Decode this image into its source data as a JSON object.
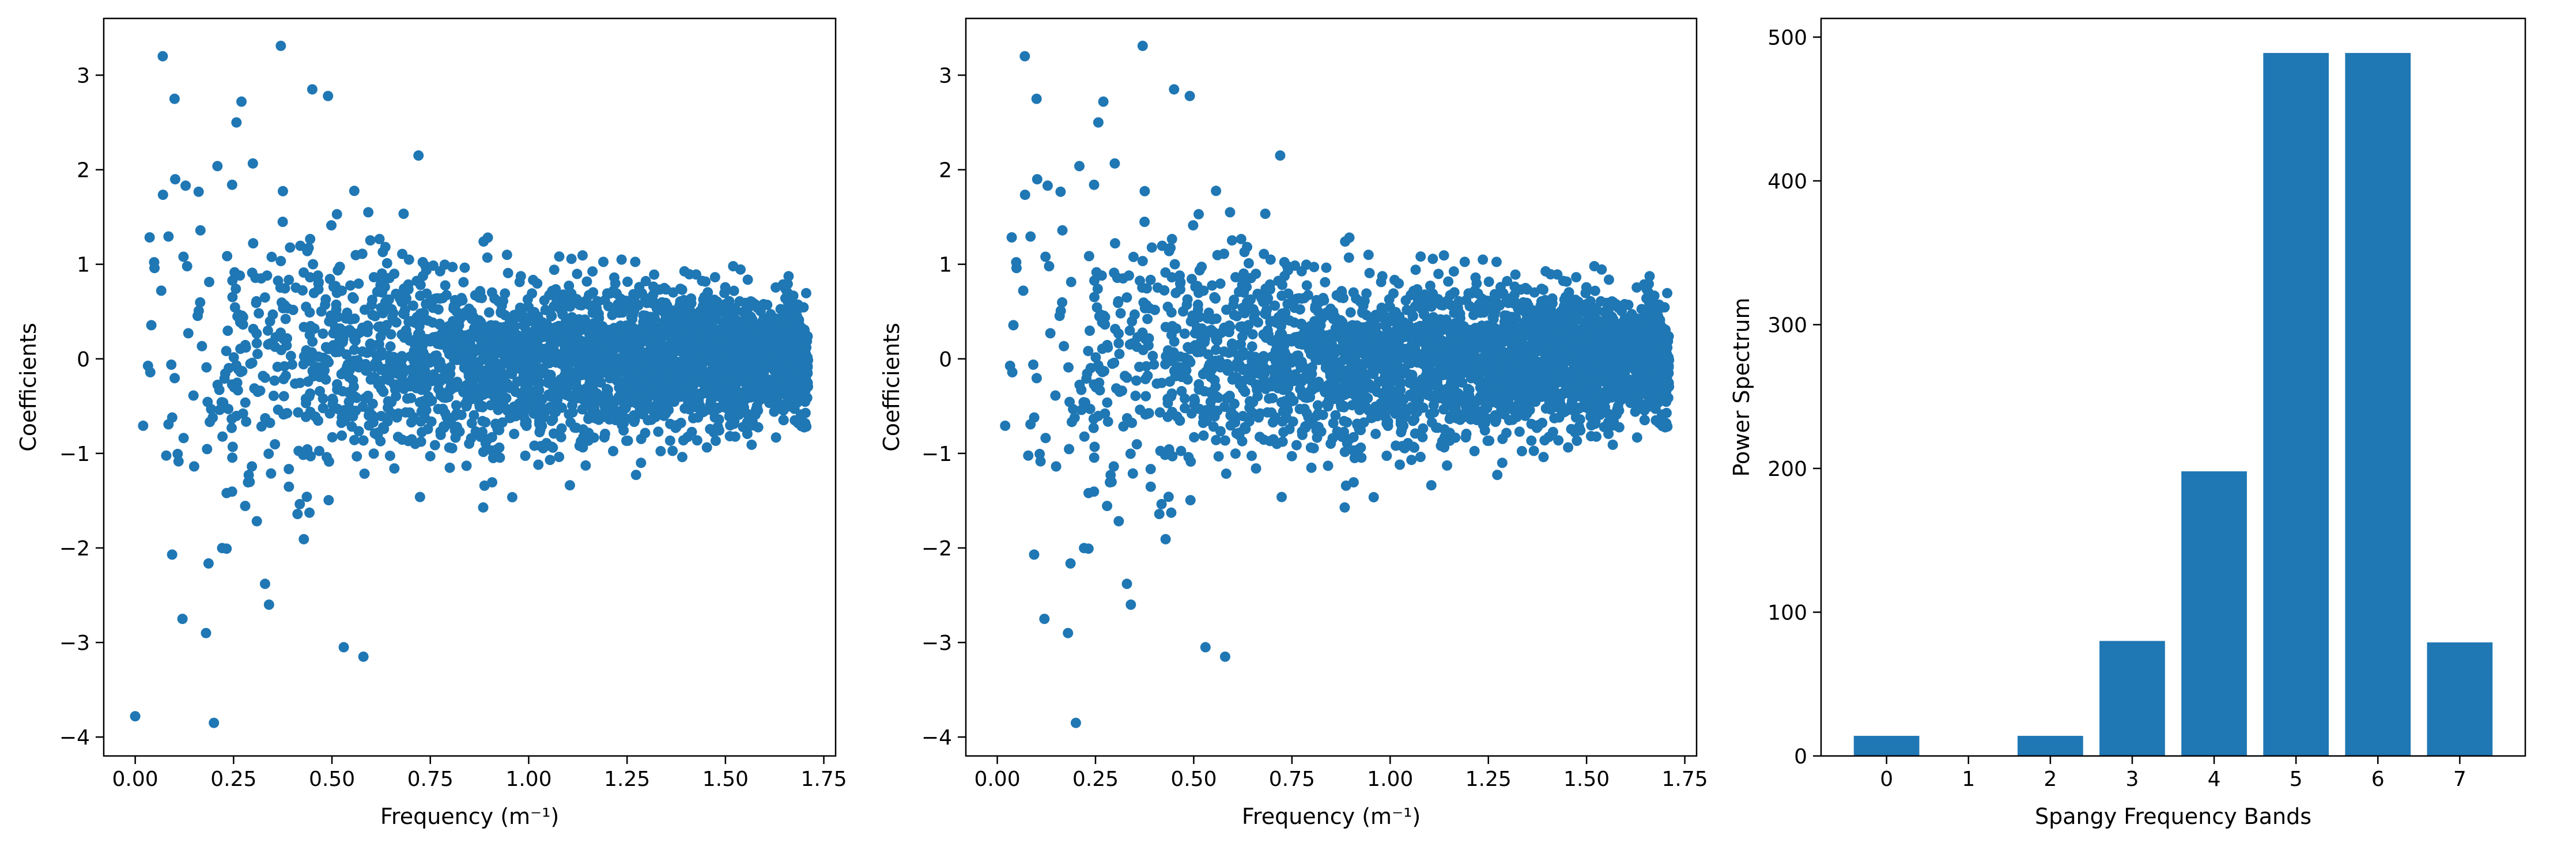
{
  "chart_data": [
    {
      "type": "scatter",
      "xlabel": "Frequency (m⁻¹)",
      "ylabel": "Coefficients",
      "xlim": [
        -0.08,
        1.78
      ],
      "ylim": [
        -4.2,
        3.6
      ],
      "xticks": [
        0.0,
        0.25,
        0.5,
        0.75,
        1.0,
        1.25,
        1.5,
        1.75
      ],
      "xtick_labels": [
        "0.00",
        "0.25",
        "0.50",
        "0.75",
        "1.00",
        "1.25",
        "1.50",
        "1.75"
      ],
      "yticks": [
        -4,
        -3,
        -2,
        -1,
        0,
        1,
        2,
        3
      ],
      "ytick_labels": [
        "−4",
        "−3",
        "−2",
        "−1",
        "0",
        "1",
        "2",
        "3"
      ],
      "color": "#1f77b4",
      "x_range": [
        0.0,
        1.71
      ],
      "n_points": 3000,
      "distribution": "coefficient spread narrows with increasing frequency",
      "notable_points": [
        {
          "x": 0.0,
          "y": -3.78
        },
        {
          "x": 0.07,
          "y": 3.2
        },
        {
          "x": 0.37,
          "y": 3.31
        },
        {
          "x": 0.2,
          "y": -3.85
        },
        {
          "x": 0.18,
          "y": -2.9
        },
        {
          "x": 0.58,
          "y": -3.15
        },
        {
          "x": 0.53,
          "y": -3.05
        },
        {
          "x": 0.45,
          "y": 2.85
        },
        {
          "x": 0.49,
          "y": 2.78
        },
        {
          "x": 0.1,
          "y": 2.75
        },
        {
          "x": 0.12,
          "y": -2.75
        },
        {
          "x": 0.34,
          "y": -2.6
        },
        {
          "x": 0.33,
          "y": -2.38
        },
        {
          "x": 0.27,
          "y": 2.72
        },
        {
          "x": 0.72,
          "y": 2.15
        }
      ]
    },
    {
      "type": "scatter",
      "xlabel": "Frequency (m⁻¹)",
      "ylabel": "Coefficients",
      "xlim": [
        -0.08,
        1.78
      ],
      "ylim": [
        -4.2,
        3.6
      ],
      "xticks": [
        0.0,
        0.25,
        0.5,
        0.75,
        1.0,
        1.25,
        1.5,
        1.75
      ],
      "xtick_labels": [
        "0.00",
        "0.25",
        "0.50",
        "0.75",
        "1.00",
        "1.25",
        "1.50",
        "1.75"
      ],
      "yticks": [
        -4,
        -3,
        -2,
        -1,
        0,
        1,
        2,
        3
      ],
      "ytick_labels": [
        "−4",
        "−3",
        "−2",
        "−1",
        "0",
        "1",
        "2",
        "3"
      ],
      "color": "#1f77b4",
      "x_range": [
        0.0,
        1.71
      ],
      "n_points": 3000,
      "distribution": "same coefficients as left panel without the point at frequency 0",
      "notable_points": [
        {
          "x": 0.07,
          "y": 3.2
        },
        {
          "x": 0.37,
          "y": 3.31
        },
        {
          "x": 0.2,
          "y": -3.85
        },
        {
          "x": 0.18,
          "y": -2.9
        },
        {
          "x": 0.58,
          "y": -3.15
        },
        {
          "x": 0.53,
          "y": -3.05
        },
        {
          "x": 0.45,
          "y": 2.85
        },
        {
          "x": 0.49,
          "y": 2.78
        },
        {
          "x": 0.1,
          "y": 2.75
        },
        {
          "x": 0.12,
          "y": -2.75
        },
        {
          "x": 0.34,
          "y": -2.6
        },
        {
          "x": 0.33,
          "y": -2.38
        },
        {
          "x": 0.27,
          "y": 2.72
        },
        {
          "x": 0.72,
          "y": 2.15
        }
      ]
    },
    {
      "type": "bar",
      "xlabel": "Spangy Frequency Bands",
      "ylabel": "Power Spectrum",
      "categories": [
        "0",
        "1",
        "2",
        "3",
        "4",
        "5",
        "6",
        "7"
      ],
      "values": [
        14,
        0,
        14,
        80,
        198,
        489,
        489,
        79
      ],
      "xlim": [
        -0.8,
        7.8
      ],
      "ylim": [
        0,
        513
      ],
      "yticks": [
        0,
        100,
        200,
        300,
        400,
        500
      ],
      "ytick_labels": [
        "0",
        "100",
        "200",
        "300",
        "400",
        "500"
      ],
      "color": "#1f77b4"
    }
  ]
}
